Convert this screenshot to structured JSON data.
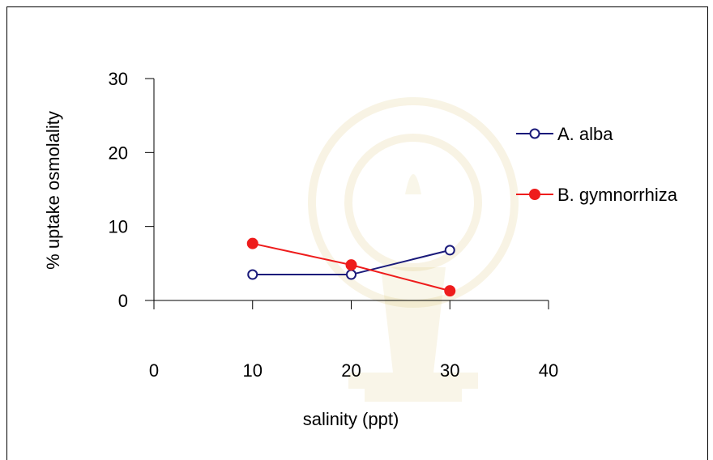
{
  "chart_data": {
    "type": "line",
    "xlabel": "salinity (ppt)",
    "ylabel": "% uptake osmolality",
    "xlim": [
      0,
      40
    ],
    "ylim": [
      0,
      30
    ],
    "x_ticks": [
      "0",
      "10",
      "20",
      "30",
      "40"
    ],
    "y_ticks": [
      "0",
      "10",
      "20",
      "30"
    ],
    "grid": false,
    "legend_position": "right",
    "series": [
      {
        "name": "A. alba",
        "color": "#1a1a7a",
        "marker": "open-circle",
        "x": [
          10,
          20,
          30
        ],
        "y": [
          3.5,
          3.5,
          6.8
        ]
      },
      {
        "name": "B. gymnorrhiza",
        "color": "#ee1c1c",
        "marker": "filled-circle",
        "x": [
          10,
          20,
          30
        ],
        "y": [
          7.7,
          4.8,
          1.3
        ]
      }
    ]
  }
}
